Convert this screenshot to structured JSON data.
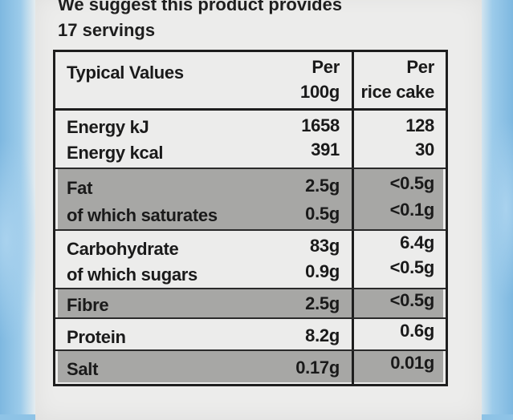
{
  "intro": {
    "line1": "We suggest this product provides",
    "line2": "17 servings"
  },
  "table": {
    "header": {
      "label": "Typical Values",
      "col1_line1": "Per",
      "col1_line2": "100g",
      "col2_line1": "Per",
      "col2_line2": "rice cake"
    },
    "rows": [
      {
        "label": "Energy kJ",
        "per100": "1658",
        "perCake": "128"
      },
      {
        "label": "Energy kcal",
        "per100": "391",
        "perCake": "30"
      },
      {
        "label": "Fat",
        "per100": "2.5g",
        "perCake": "<0.5g"
      },
      {
        "label": "of which saturates",
        "per100": "0.5g",
        "perCake": "<0.1g"
      },
      {
        "label": "Carbohydrate",
        "per100": "83g",
        "perCake": "6.4g"
      },
      {
        "label": "of which sugars",
        "per100": "0.9g",
        "perCake": "<0.5g"
      },
      {
        "label": "Fibre",
        "per100": "2.5g",
        "perCake": "<0.5g"
      },
      {
        "label": "Protein",
        "per100": "8.2g",
        "perCake": "0.6g"
      },
      {
        "label": "Salt",
        "per100": "0.17g",
        "perCake": "0.01g"
      }
    ]
  }
}
